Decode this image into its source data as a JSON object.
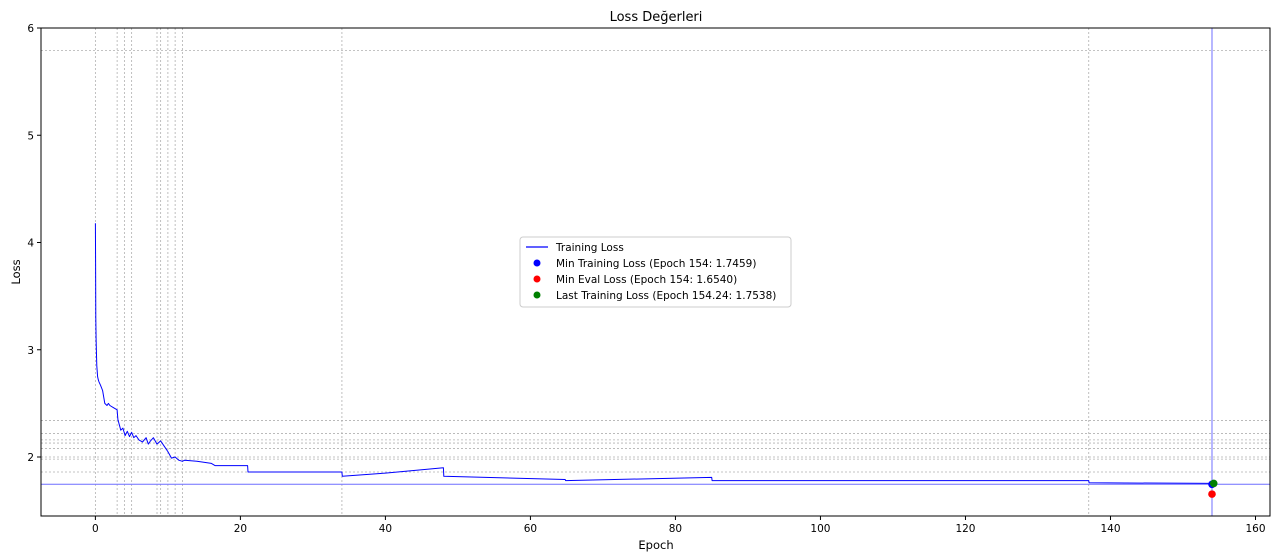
{
  "chart_data": {
    "type": "line",
    "title": "Loss Değerleri",
    "xlabel": "Epoch",
    "ylabel": "Loss",
    "xlim": [
      -7.5,
      162
    ],
    "ylim": [
      1.45,
      6.0
    ],
    "xticks": [
      0,
      20,
      40,
      60,
      80,
      100,
      120,
      140,
      160
    ],
    "yticks": [
      2,
      3,
      4,
      5,
      6
    ],
    "grid": true,
    "legend_position": "center",
    "series": [
      {
        "name": "Training Loss",
        "color": "#0000ff",
        "x": [
          0.0,
          0.03,
          0.06,
          0.1,
          0.15,
          0.2,
          0.25,
          0.3,
          0.4,
          0.5,
          0.7,
          1.0,
          1.3,
          1.6,
          1.8,
          2.0,
          2.5,
          3.0,
          3.1,
          3.3,
          3.5,
          3.8,
          4.1,
          4.4,
          4.7,
          5.0,
          5.3,
          5.6,
          6.0,
          6.5,
          7.0,
          7.3,
          7.6,
          8.0,
          8.5,
          9.0,
          9.5,
          10.0,
          10.5,
          11.0,
          11.5,
          12.0,
          12.3,
          14.0,
          16.0,
          16.5,
          21.0,
          21.05,
          34.0,
          34.05,
          40.0,
          48.0,
          48.05,
          64.8,
          64.85,
          85.0,
          85.05,
          137.0,
          137.05,
          154.24
        ],
        "values": [
          4.18,
          3.8,
          3.3,
          3.1,
          2.95,
          2.85,
          2.8,
          2.75,
          2.72,
          2.7,
          2.67,
          2.62,
          2.5,
          2.48,
          2.5,
          2.48,
          2.46,
          2.44,
          2.35,
          2.3,
          2.25,
          2.27,
          2.2,
          2.24,
          2.19,
          2.23,
          2.18,
          2.2,
          2.16,
          2.14,
          2.18,
          2.12,
          2.15,
          2.18,
          2.12,
          2.15,
          2.1,
          2.05,
          1.99,
          2.0,
          1.97,
          1.96,
          1.97,
          1.96,
          1.94,
          1.92,
          1.92,
          1.86,
          1.86,
          1.82,
          1.85,
          1.9,
          1.82,
          1.79,
          1.78,
          1.81,
          1.78,
          1.78,
          1.76,
          1.7538
        ]
      }
    ],
    "markers": [
      {
        "name": "Min Training Loss (Epoch 154: 1.7459)",
        "x": 154.0,
        "y": 1.7459,
        "color": "#0000ff"
      },
      {
        "name": "Min Eval Loss (Epoch 154: 1.6540)",
        "x": 154.0,
        "y": 1.654,
        "color": "#ff0000"
      },
      {
        "name": "Last Training Loss (Epoch 154.24: 1.7538)",
        "x": 154.24,
        "y": 1.7538,
        "color": "#008000"
      }
    ],
    "reference_lines": {
      "horizontal_solid": [
        1.7459
      ],
      "vertical_solid": [
        154.0
      ],
      "vertical_dotted": [
        0,
        3,
        4,
        5,
        8.5,
        9,
        10,
        11,
        12,
        34,
        137
      ],
      "horizontal_dotted": [
        5.79,
        2.34,
        2.22,
        2.16,
        2.13,
        2.08,
        2.0,
        1.98,
        1.86
      ]
    }
  }
}
